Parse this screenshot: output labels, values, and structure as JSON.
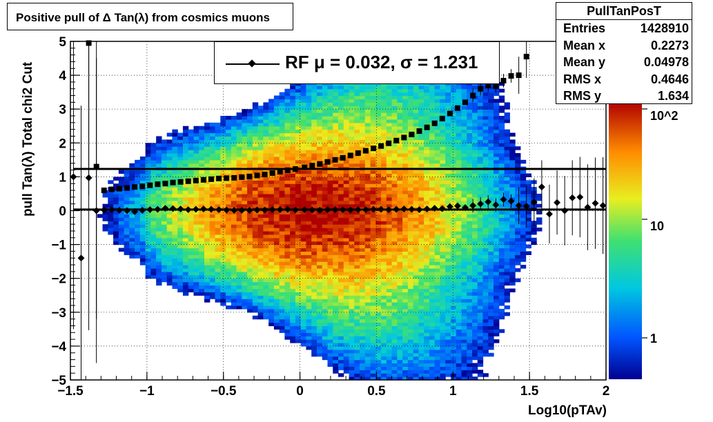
{
  "title": "Positive pull of Δ Tan(λ) from cosmics muons",
  "stats": {
    "name": "PullTanPosT",
    "rows": [
      {
        "key": "Entries",
        "value": "1428910"
      },
      {
        "key": "Mean x",
        "value": "0.2273"
      },
      {
        "key": "Mean y",
        "value": "0.04978"
      },
      {
        "key": "RMS x",
        "value": "0.4646"
      },
      {
        "key": "RMS y",
        "value": "1.634"
      }
    ]
  },
  "fit_legend": "RF μ =  0.032, σ =   1.231",
  "chart_data": {
    "type": "heatmap",
    "title": "Positive pull of Δ Tan(λ) from cosmics muons",
    "xlabel": "Log10(pTAv)",
    "ylabel": "pull Tan(λ)  Total chi2 Cut",
    "xlim": [
      -1.5,
      2
    ],
    "ylim": [
      -5,
      5
    ],
    "xticks": [
      "−1.5",
      "−1",
      "−0.5",
      "0",
      "0.5",
      "1",
      "1.5",
      "2"
    ],
    "yticks": [
      "−5",
      "−4",
      "−3",
      "−2",
      "−1",
      "0",
      "1",
      "2",
      "3",
      "4",
      "5"
    ],
    "z_scale": "log",
    "zticks": [
      "1",
      "10",
      "10^2"
    ],
    "grid": true,
    "series": [
      {
        "name": "mean",
        "marker": "diamond",
        "x": [
          -1.48,
          -1.43,
          -1.38,
          -1.33,
          -1.28,
          -1.23,
          -1.18,
          -1.13,
          -1.08,
          -1.03,
          -0.98,
          -0.93,
          -0.88,
          -0.83,
          -0.78,
          -0.73,
          -0.68,
          -0.63,
          -0.58,
          -0.53,
          -0.48,
          -0.43,
          -0.38,
          -0.33,
          -0.28,
          -0.23,
          -0.18,
          -0.13,
          -0.08,
          -0.03,
          0.03,
          0.08,
          0.13,
          0.18,
          0.23,
          0.28,
          0.33,
          0.38,
          0.43,
          0.48,
          0.53,
          0.58,
          0.63,
          0.68,
          0.73,
          0.78,
          0.83,
          0.88,
          0.93,
          0.98,
          1.03,
          1.08,
          1.13,
          1.18,
          1.23,
          1.28,
          1.33,
          1.38,
          1.43,
          1.48,
          1.53,
          1.58,
          1.63,
          1.68,
          1.73,
          1.78,
          1.83,
          1.88,
          1.93,
          1.98
        ],
        "y": [
          1.0,
          -1.4,
          0.97,
          0.0,
          0.02,
          0.03,
          0.01,
          0.0,
          -0.03,
          0.01,
          0.03,
          0.04,
          0.07,
          0.06,
          0.05,
          0.03,
          0.04,
          0.05,
          0.04,
          0.03,
          0.02,
          0.01,
          0.01,
          0.01,
          0.02,
          0.02,
          0.03,
          0.03,
          0.04,
          0.02,
          0.03,
          0.02,
          0.01,
          0.03,
          0.03,
          0.03,
          0.02,
          0.03,
          0.03,
          0.04,
          0.04,
          0.03,
          0.04,
          0.05,
          0.04,
          0.03,
          0.05,
          0.07,
          0.06,
          0.12,
          0.14,
          0.09,
          0.15,
          0.2,
          0.26,
          0.17,
          0.33,
          0.28,
          0.15,
          0.13,
          0.25,
          0.7,
          -0.1,
          0.24,
          0.0,
          0.38,
          0.4,
          0.1,
          0.22,
          0.15
        ]
      },
      {
        "name": "sigma",
        "marker": "square",
        "x": [
          -1.38,
          -1.33,
          -1.28,
          -1.23,
          -1.18,
          -1.13,
          -1.08,
          -1.03,
          -0.98,
          -0.93,
          -0.88,
          -0.83,
          -0.78,
          -0.73,
          -0.68,
          -0.63,
          -0.58,
          -0.53,
          -0.48,
          -0.43,
          -0.38,
          -0.33,
          -0.28,
          -0.23,
          -0.18,
          -0.13,
          -0.08,
          -0.03,
          0.03,
          0.08,
          0.13,
          0.18,
          0.23,
          0.28,
          0.33,
          0.38,
          0.43,
          0.48,
          0.53,
          0.58,
          0.63,
          0.68,
          0.73,
          0.78,
          0.83,
          0.88,
          0.93,
          0.98,
          1.03,
          1.08,
          1.13,
          1.18,
          1.23,
          1.28,
          1.33,
          1.38,
          1.43,
          1.48
        ],
        "y": [
          4.95,
          1.3,
          0.6,
          0.63,
          0.65,
          0.67,
          0.7,
          0.72,
          0.75,
          0.78,
          0.8,
          0.83,
          0.85,
          0.87,
          0.89,
          0.91,
          0.93,
          0.95,
          0.96,
          0.97,
          0.99,
          1.01,
          1.04,
          1.07,
          1.11,
          1.15,
          1.19,
          1.23,
          1.28,
          1.33,
          1.38,
          1.44,
          1.5,
          1.56,
          1.63,
          1.7,
          1.77,
          1.84,
          1.91,
          1.99,
          2.07,
          2.16,
          2.25,
          2.35,
          2.46,
          2.58,
          2.72,
          2.87,
          3.03,
          3.2,
          3.4,
          3.6,
          3.7,
          3.68,
          3.84,
          3.98,
          4.0,
          4.55
        ]
      }
    ],
    "fit_lines": [
      {
        "name": "mean fit",
        "y": 0.032
      },
      {
        "name": "sigma fit",
        "y": 1.231
      }
    ]
  }
}
